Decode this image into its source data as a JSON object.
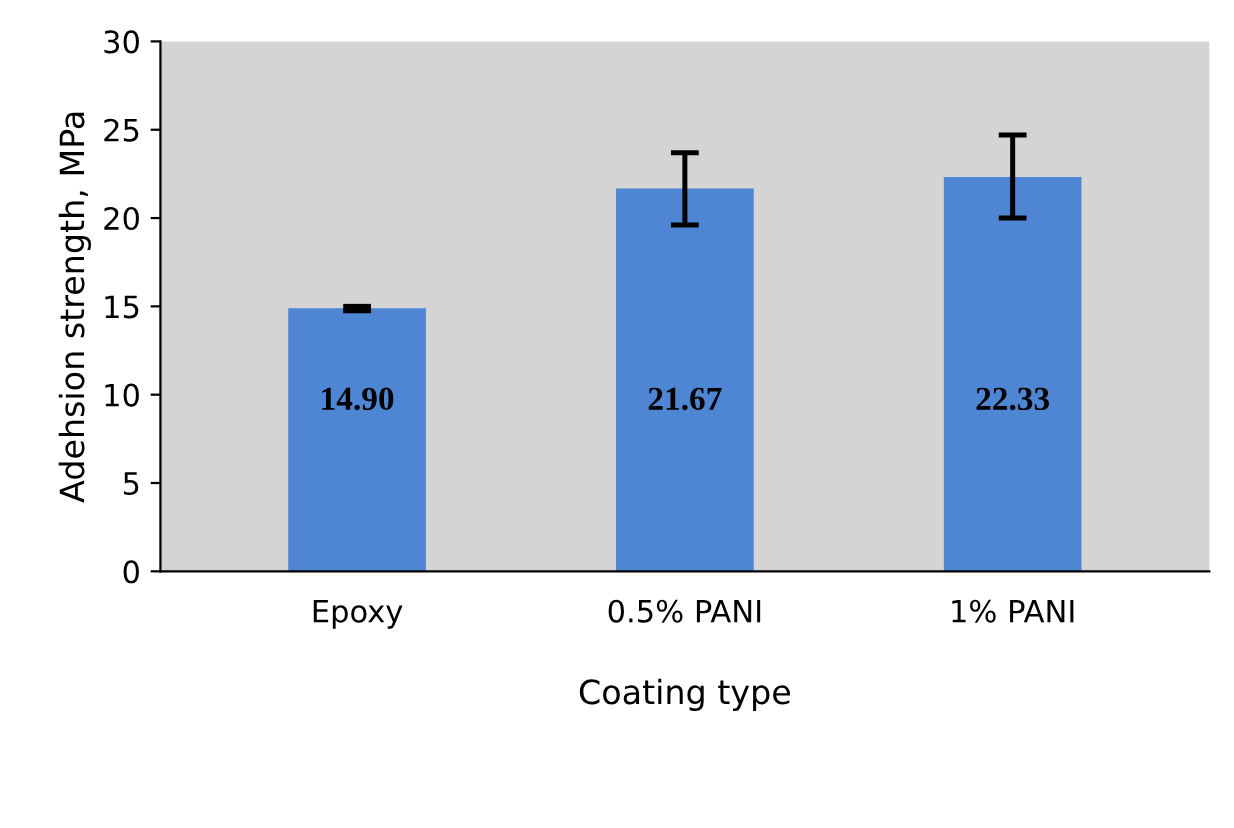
{
  "chart_data": {
    "type": "bar",
    "xlabel": "Coating type",
    "ylabel": "Adehsion strength, MPa",
    "categories": [
      "Epoxy",
      "0.5% PANI",
      "1% PANI"
    ],
    "values": [
      14.9,
      21.67,
      22.33
    ],
    "value_labels": [
      "14.90",
      "21.67",
      "22.33"
    ],
    "errors": [
      [
        14.75,
        15.0
      ],
      [
        19.6,
        23.7
      ],
      [
        20.0,
        24.7
      ]
    ],
    "color": "#4f86d3",
    "ylim": [
      0,
      30
    ],
    "yticks": [
      0,
      5,
      10,
      15,
      20,
      25,
      30
    ],
    "grid": false,
    "legend": false
  }
}
